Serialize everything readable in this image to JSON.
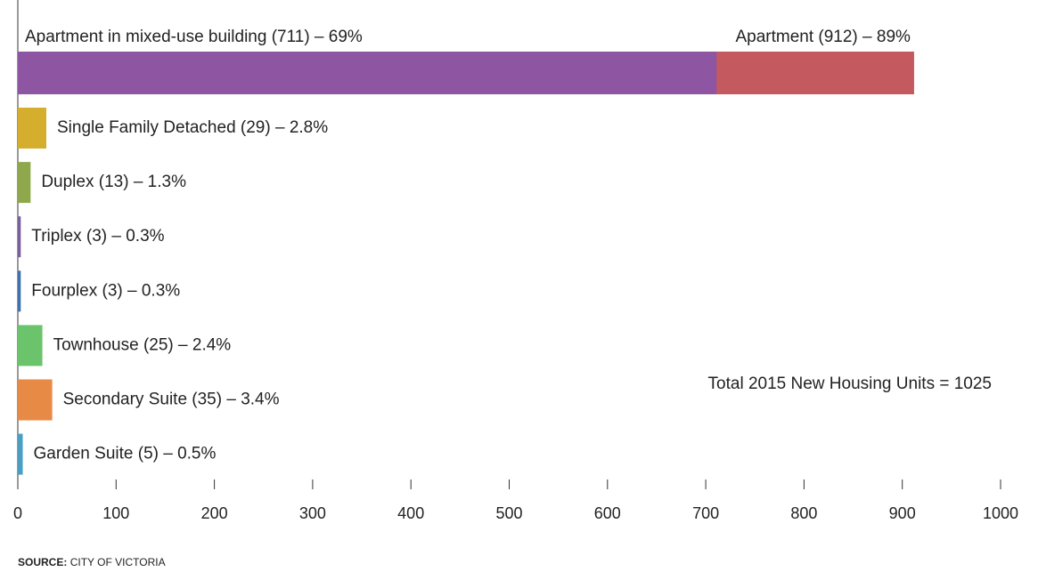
{
  "chart_data": {
    "type": "bar",
    "orientation": "horizontal",
    "values": [
      912,
      29,
      13,
      3,
      3,
      25,
      35,
      5
    ],
    "value_labels": [
      "Apartment (912) – 89%",
      "Single Family Detached (29) – 2.8%",
      "Duplex (13) – 1.3%",
      "Triplex (3) – 0.3%",
      "Fourplex (3) – 0.3%",
      "Townhouse (25) – 2.4%",
      "Secondary Suite (35) – 3.4%",
      "Garden Suite (5) – 0.5%"
    ],
    "colors": [
      "#c4595f",
      "#d4ae2c",
      "#8fa84c",
      "#7a5fa0",
      "#3f72ad",
      "#6bc46b",
      "#e68a45",
      "#4b9ec4"
    ],
    "overlay": {
      "values": [
        711
      ],
      "value_labels": [
        "Apartment in mixed-use building (711) – 69%"
      ],
      "color": "#8e55a3"
    },
    "xlim": [
      0,
      1000
    ],
    "xticks": [
      0,
      100,
      200,
      300,
      400,
      500,
      600,
      700,
      800,
      900,
      1000
    ],
    "annotation": "Total 2015 New Housing Units = 1025",
    "source_label": "SOURCE:",
    "source": "CITY OF VICTORIA"
  }
}
